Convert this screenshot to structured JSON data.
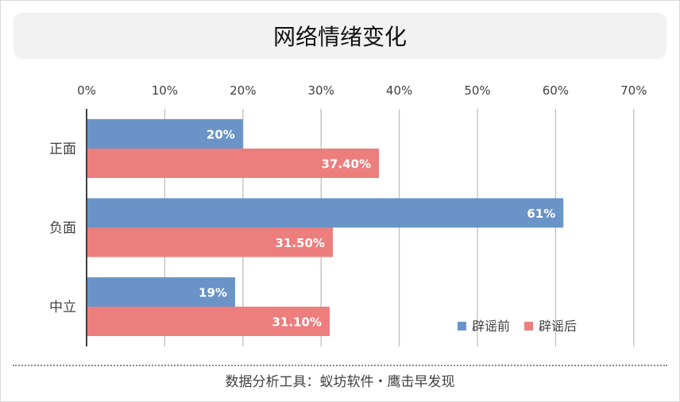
{
  "chart_data": {
    "type": "bar",
    "orientation": "horizontal",
    "title": "网络情绪变化",
    "categories": [
      "正面",
      "负面",
      "中立"
    ],
    "series": [
      {
        "name": "辟谣前",
        "values": [
          20,
          61,
          19
        ],
        "labels": [
          "20%",
          "61%",
          "19%"
        ],
        "color": "#6a94c8"
      },
      {
        "name": "辟谣后",
        "values": [
          37.4,
          31.5,
          31.1
        ],
        "labels": [
          "37.40%",
          "31.50%",
          "31.10%"
        ],
        "color": "#ec7e7e"
      }
    ],
    "xlim": [
      0,
      70
    ],
    "xticks": [
      "0%",
      "10%",
      "20%",
      "30%",
      "40%",
      "50%",
      "60%",
      "70%"
    ],
    "xaxis_position": "top",
    "grid": true,
    "legend_position": "bottom-right"
  },
  "footer": {
    "text": "数据分析工具：蚁坊软件・鹰击早发现"
  }
}
